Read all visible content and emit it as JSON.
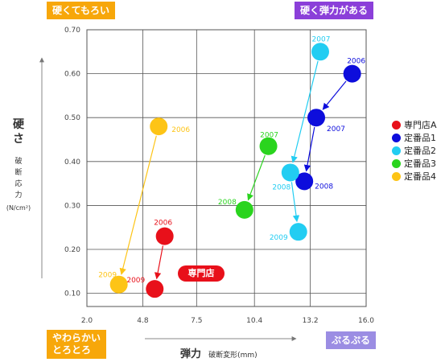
{
  "corners": {
    "top_left": "硬くてもろい",
    "top_right": "硬く弾力がある",
    "bottom_left_line1": "やわらかい",
    "bottom_left_line2": "とろとろ",
    "bottom_right": "ぷるぷる"
  },
  "colors": {
    "orange": "#F7A70A",
    "purple": "#8B3FD9",
    "lavender": "#9B8DE3",
    "red": "#E8101A",
    "blue": "#0D0DDC",
    "cyan": "#22CDF2",
    "green": "#2AD41E",
    "yellow": "#FDC416",
    "grid": "#555555"
  },
  "y_axis_label": {
    "main_1": "硬",
    "main_2": "さ",
    "sub": "破断応力",
    "unit": "(N/cm²)"
  },
  "x_axis_label": {
    "main": "弾力",
    "sub": "破断変形(mm)"
  },
  "callout": "専門店",
  "chart_data": {
    "type": "scatter",
    "xlabel": "弾力 破断変形(mm)",
    "ylabel": "硬さ 破断応力 (N/cm²)",
    "xlim": [
      2.0,
      16.0
    ],
    "ylim": [
      0.07,
      0.7
    ],
    "x_ticks": [
      "2.0",
      "4.8",
      "7.5",
      "10.4",
      "13.2",
      "16.0"
    ],
    "y_ticks": [
      "0.10",
      "0.20",
      "0.30",
      "0.40",
      "0.50",
      "0.60",
      "0.70"
    ],
    "legend_position": "right",
    "series": [
      {
        "name": "専門店A",
        "color": "#E8101A",
        "points": [
          {
            "year": "2006",
            "x": 5.9,
            "y": 0.23
          },
          {
            "year": "2009",
            "x": 5.4,
            "y": 0.11
          }
        ]
      },
      {
        "name": "定番品1",
        "color": "#0D0DDC",
        "points": [
          {
            "year": "2006",
            "x": 15.3,
            "y": 0.6
          },
          {
            "year": "2007",
            "x": 13.5,
            "y": 0.5
          },
          {
            "year": "2008",
            "x": 12.9,
            "y": 0.355
          }
        ]
      },
      {
        "name": "定番品2",
        "color": "#22CDF2",
        "points": [
          {
            "year": "2007",
            "x": 13.7,
            "y": 0.65
          },
          {
            "year": "2008",
            "x": 12.2,
            "y": 0.375
          },
          {
            "year": "2009",
            "x": 12.6,
            "y": 0.24
          }
        ]
      },
      {
        "name": "定番品3",
        "color": "#2AD41E",
        "points": [
          {
            "year": "2007",
            "x": 11.1,
            "y": 0.435
          },
          {
            "year": "2008",
            "x": 9.9,
            "y": 0.29
          }
        ]
      },
      {
        "name": "定番品4",
        "color": "#FDC416",
        "points": [
          {
            "year": "2006",
            "x": 5.6,
            "y": 0.48
          },
          {
            "year": "2009",
            "x": 3.6,
            "y": 0.12
          }
        ]
      }
    ]
  }
}
